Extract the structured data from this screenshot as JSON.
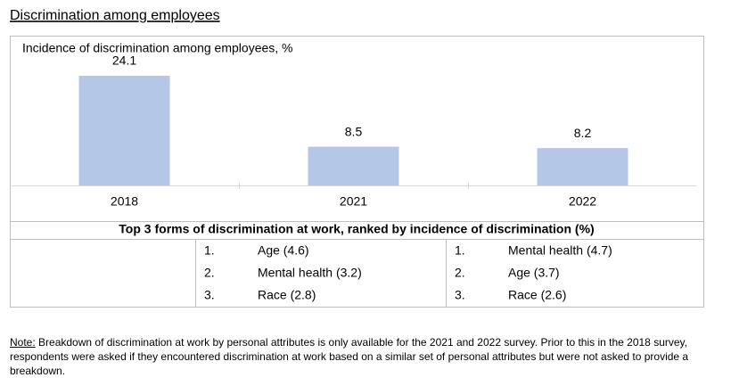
{
  "title": "Discrimination among employees",
  "chart_data": {
    "type": "bar",
    "title": "Incidence of discrimination among employees, %",
    "categories": [
      "2018",
      "2021",
      "2022"
    ],
    "values": [
      24.1,
      8.5,
      8.2
    ],
    "color": "#b4c7e7"
  },
  "table": {
    "header": "Top 3 forms of discrimination at work, ranked by incidence of discrimination (%)",
    "rows": [
      [
        "1.",
        "Age (4.6)",
        "1.",
        "Mental health (4.7)"
      ],
      [
        "2.",
        "Mental health (3.2)",
        "2.",
        "Age (3.7)"
      ],
      [
        "3.",
        "Race (2.8)",
        "3.",
        "Race (2.6)"
      ]
    ]
  },
  "note": {
    "label": "Note:",
    "text": "Breakdown of discrimination at work by personal attributes is only available for the 2021 and 2022 survey. Prior to this in the 2018 survey, respondents were asked if they encountered discrimination at work based on a similar set of personal attributes but were not asked to provide a breakdown."
  }
}
